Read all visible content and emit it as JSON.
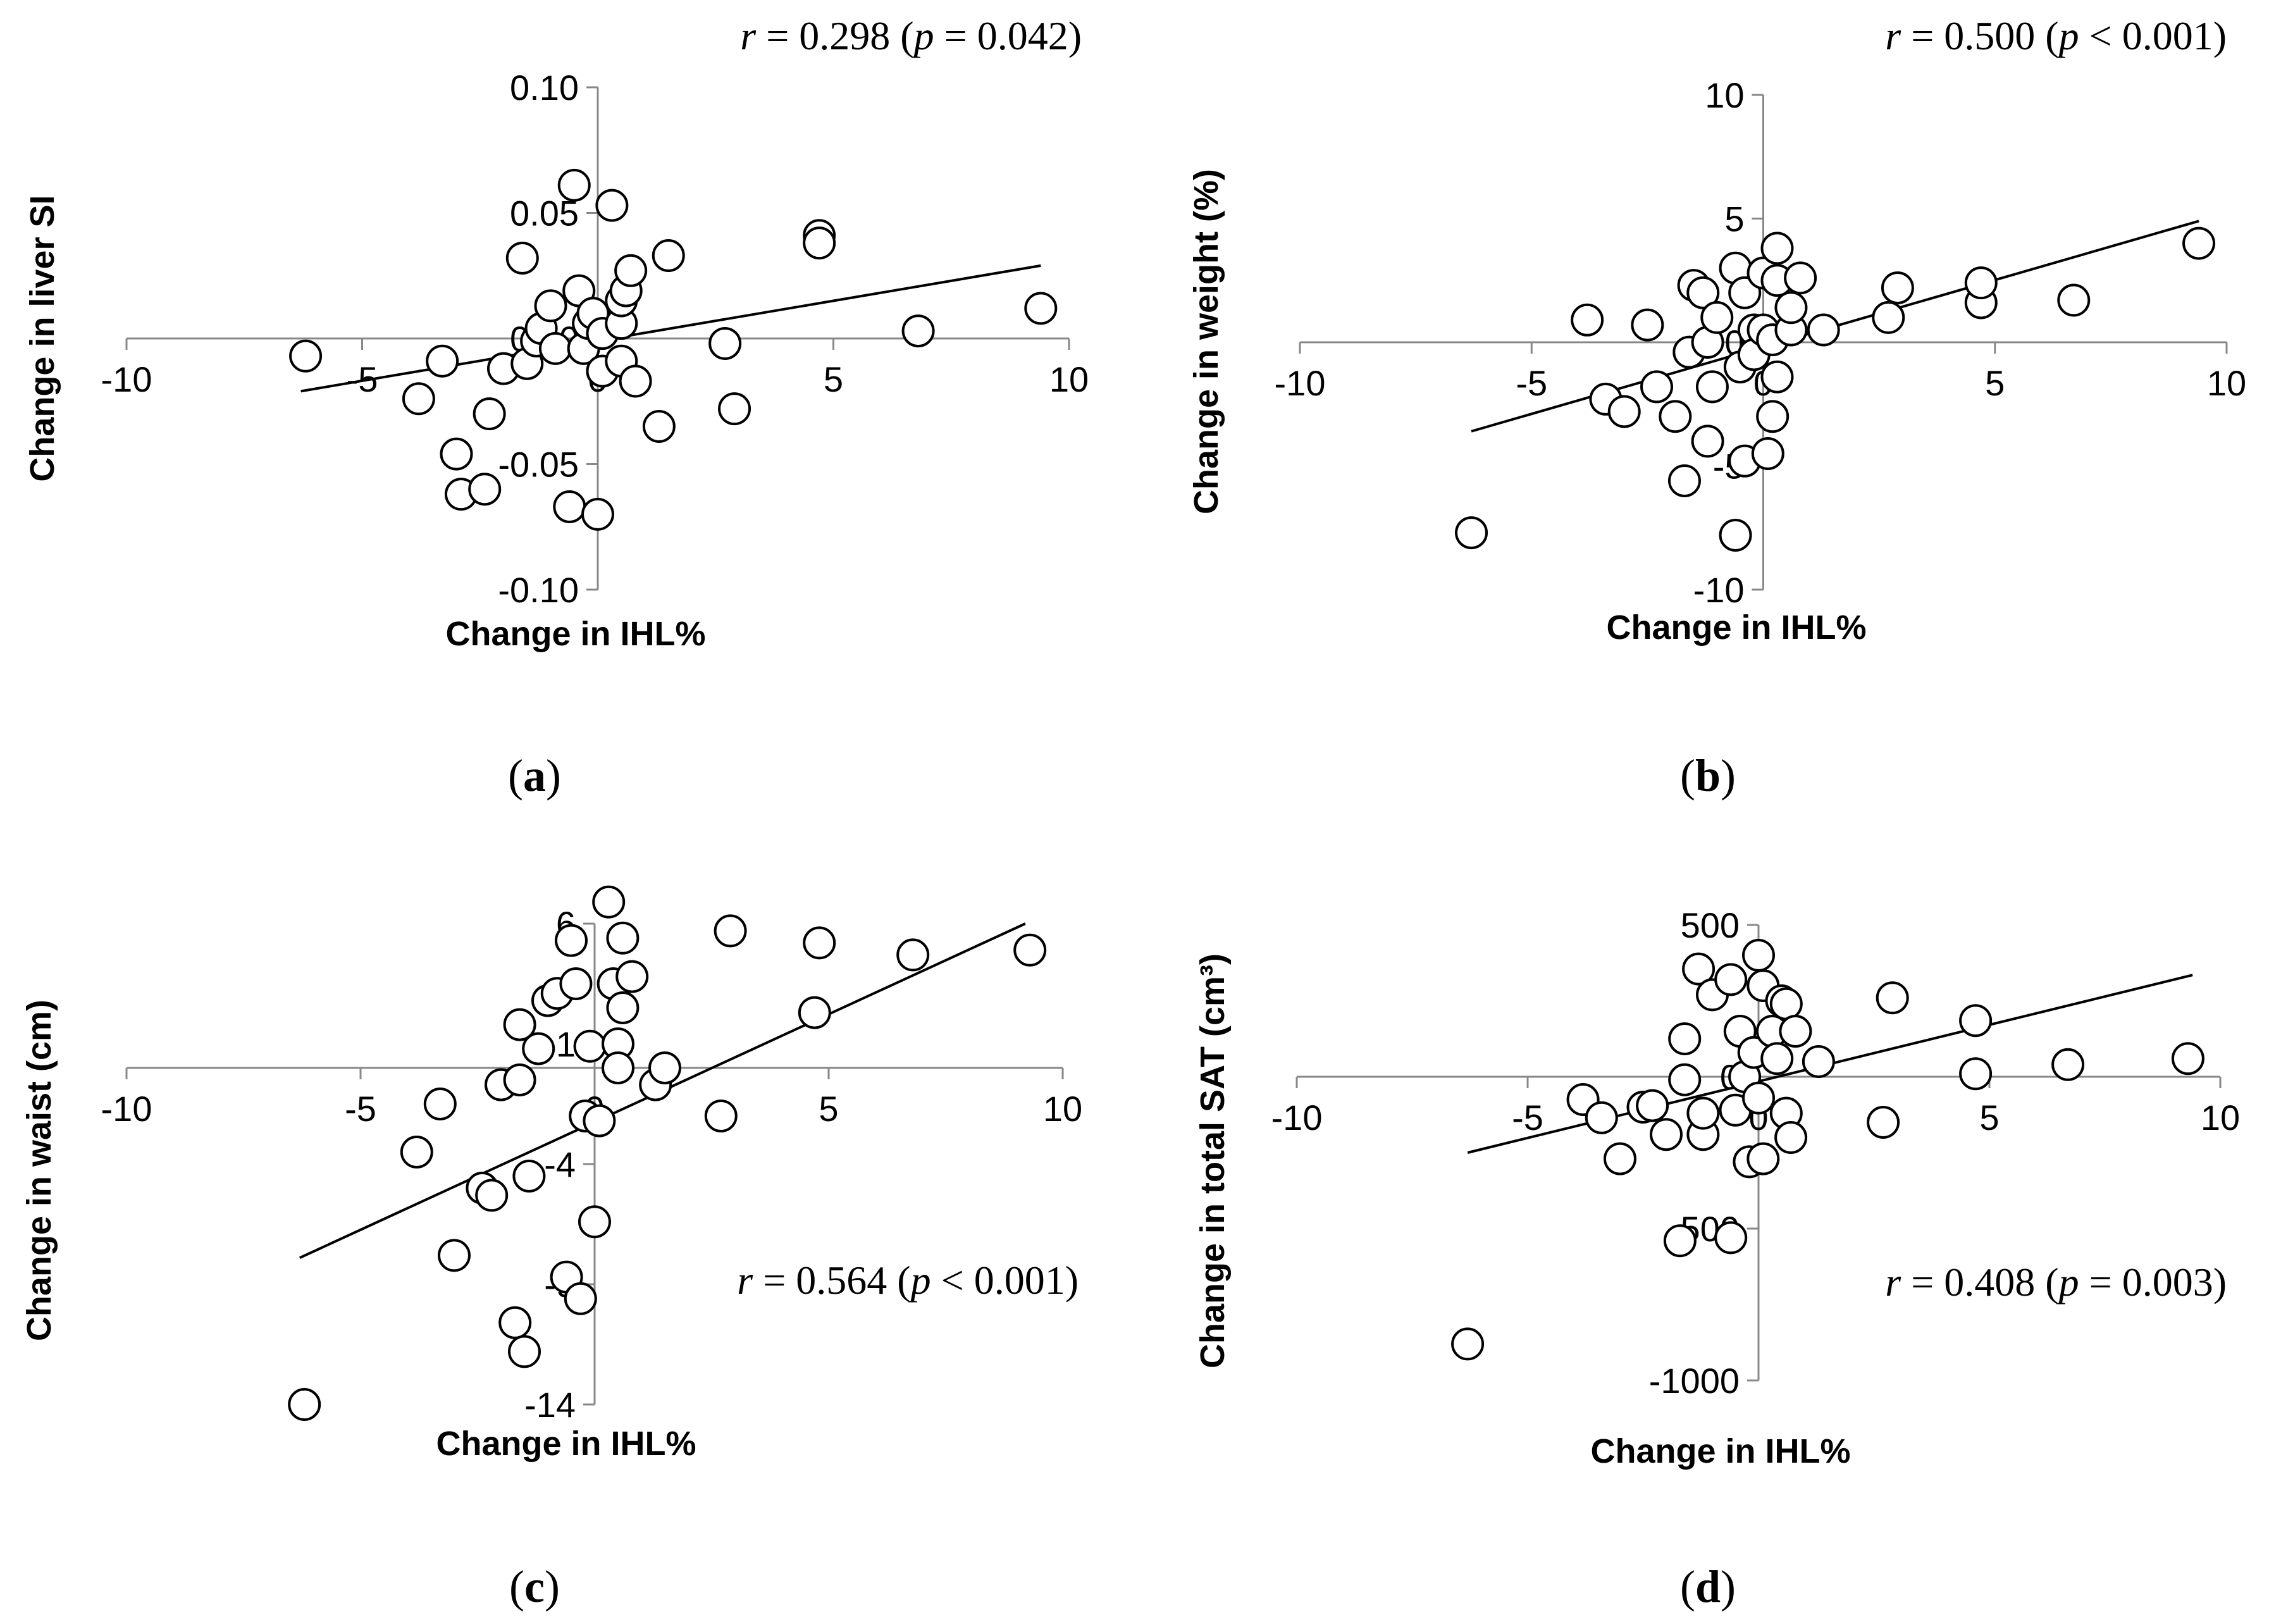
{
  "chart_data": [
    {
      "id": "a",
      "type": "scatter",
      "panel_label": "a",
      "stat": {
        "r": "0.298",
        "p_op": "=",
        "p": "0.042"
      },
      "xlabel": "Change in IHL%",
      "ylabel": "Change in liver SI",
      "xlim": [
        -10,
        10
      ],
      "ylim": [
        -0.1,
        0.1
      ],
      "xticks": [
        "-10",
        "-5",
        "0",
        "5",
        "10"
      ],
      "yticks": [
        "0.10",
        "0.05",
        "0.00",
        "-0.05",
        "-0.10"
      ],
      "trendline": [
        [
          -6.3,
          -0.021
        ],
        [
          9.4,
          0.029
        ]
      ],
      "points": [
        [
          -6.2,
          -0.007
        ],
        [
          -3.8,
          -0.024
        ],
        [
          -3.3,
          -0.009
        ],
        [
          -3.0,
          -0.046
        ],
        [
          -2.9,
          -0.062
        ],
        [
          -2.4,
          -0.06
        ],
        [
          -2.3,
          -0.03
        ],
        [
          -2.0,
          -0.012
        ],
        [
          -1.6,
          0.032
        ],
        [
          -1.5,
          -0.01
        ],
        [
          -1.3,
          -0.001
        ],
        [
          -1.2,
          0.004
        ],
        [
          -1.0,
          0.013
        ],
        [
          -0.9,
          -0.004
        ],
        [
          -0.6,
          -0.067
        ],
        [
          -0.5,
          0.061
        ],
        [
          -0.4,
          0.019
        ],
        [
          -0.3,
          -0.004
        ],
        [
          -0.2,
          0.006
        ],
        [
          -0.1,
          0.01
        ],
        [
          0.0,
          -0.07
        ],
        [
          0.1,
          -0.013
        ],
        [
          0.1,
          0.002
        ],
        [
          0.3,
          0.053
        ],
        [
          0.5,
          -0.009
        ],
        [
          0.5,
          0.006
        ],
        [
          0.5,
          0.015
        ],
        [
          0.6,
          0.019
        ],
        [
          0.7,
          0.027
        ],
        [
          0.8,
          -0.017
        ],
        [
          1.3,
          -0.035
        ],
        [
          1.5,
          0.033
        ],
        [
          2.7,
          -0.002
        ],
        [
          2.9,
          -0.028
        ],
        [
          4.7,
          0.041
        ],
        [
          4.7,
          0.038
        ],
        [
          6.8,
          0.003
        ],
        [
          9.4,
          0.012
        ]
      ]
    },
    {
      "id": "b",
      "type": "scatter",
      "panel_label": "b",
      "stat": {
        "r": "0.500",
        "p_op": "<",
        "p": "0.001"
      },
      "xlabel": "Change in IHL%",
      "ylabel": "Change in weight (%)",
      "xlim": [
        -10,
        10
      ],
      "ylim": [
        -10,
        10
      ],
      "xticks": [
        "-10",
        "-5",
        "0",
        "5",
        "10"
      ],
      "yticks": [
        "10",
        "5",
        "0",
        "-5",
        "-10"
      ],
      "trendline": [
        [
          -6.3,
          -3.6
        ],
        [
          9.4,
          4.9
        ]
      ],
      "points": [
        [
          -6.3,
          -7.7
        ],
        [
          -3.8,
          0.9
        ],
        [
          -3.4,
          -2.3
        ],
        [
          -3.0,
          -2.8
        ],
        [
          -2.5,
          0.7
        ],
        [
          -2.3,
          -1.8
        ],
        [
          -1.9,
          -3.0
        ],
        [
          -1.7,
          -5.6
        ],
        [
          -1.6,
          -0.4
        ],
        [
          -1.5,
          2.3
        ],
        [
          -1.3,
          2.0
        ],
        [
          -1.2,
          -4.0
        ],
        [
          -1.2,
          0.0
        ],
        [
          -1.1,
          -1.8
        ],
        [
          -1.0,
          1.0
        ],
        [
          -0.6,
          -7.8
        ],
        [
          -0.6,
          3.0
        ],
        [
          -0.5,
          -1.0
        ],
        [
          -0.4,
          2.0
        ],
        [
          -0.4,
          -4.8
        ],
        [
          -0.2,
          0.5
        ],
        [
          -0.2,
          -0.5
        ],
        [
          0.0,
          2.8
        ],
        [
          0.0,
          0.5
        ],
        [
          0.1,
          -4.5
        ],
        [
          0.2,
          0.1
        ],
        [
          0.2,
          -3.0
        ],
        [
          0.3,
          -1.4
        ],
        [
          0.3,
          2.5
        ],
        [
          0.3,
          3.8
        ],
        [
          0.6,
          0.5
        ],
        [
          0.6,
          1.4
        ],
        [
          0.8,
          2.6
        ],
        [
          1.3,
          0.5
        ],
        [
          2.7,
          1.0
        ],
        [
          2.9,
          2.2
        ],
        [
          4.7,
          1.6
        ],
        [
          4.7,
          2.4
        ],
        [
          6.7,
          1.7
        ],
        [
          9.4,
          4.0
        ]
      ]
    },
    {
      "id": "c",
      "type": "scatter",
      "panel_label": "c",
      "stat": {
        "r": "0.564",
        "p_op": "<",
        "p": "0.001"
      },
      "xlabel": "Change in IHL%",
      "ylabel": "Change in waist (cm)",
      "xlim": [
        -10,
        10
      ],
      "ylim": [
        -14,
        6
      ],
      "xticks": [
        "-10",
        "-5",
        "0",
        "5",
        "10"
      ],
      "yticks": [
        "6",
        "1",
        "-4",
        "-9",
        "-14"
      ],
      "trendline": [
        [
          -6.3,
          -7.9
        ],
        [
          9.2,
          6.0
        ]
      ],
      "points": [
        [
          -6.2,
          -14.0
        ],
        [
          -3.8,
          -3.5
        ],
        [
          -3.3,
          -1.5
        ],
        [
          -3.0,
          -7.8
        ],
        [
          -2.4,
          -5.0
        ],
        [
          -2.2,
          -5.3
        ],
        [
          -2.0,
          -0.7
        ],
        [
          -1.7,
          -10.6
        ],
        [
          -1.6,
          1.8
        ],
        [
          -1.6,
          -0.5
        ],
        [
          -1.5,
          -11.8
        ],
        [
          -1.4,
          -4.5
        ],
        [
          -1.2,
          0.8
        ],
        [
          -1.0,
          2.8
        ],
        [
          -0.8,
          3.1
        ],
        [
          -0.6,
          -8.7
        ],
        [
          -0.5,
          5.3
        ],
        [
          -0.4,
          3.5
        ],
        [
          -0.3,
          -9.6
        ],
        [
          -0.2,
          -2.0
        ],
        [
          -0.1,
          0.9
        ],
        [
          0.0,
          -6.4
        ],
        [
          0.1,
          -2.2
        ],
        [
          0.3,
          6.9
        ],
        [
          0.4,
          3.5
        ],
        [
          0.5,
          1.0
        ],
        [
          0.5,
          0.0
        ],
        [
          0.6,
          2.5
        ],
        [
          0.6,
          5.4
        ],
        [
          0.8,
          3.8
        ],
        [
          1.3,
          -0.7
        ],
        [
          1.5,
          0.0
        ],
        [
          2.7,
          -2.0
        ],
        [
          2.9,
          5.7
        ],
        [
          4.7,
          2.3
        ],
        [
          4.8,
          5.2
        ],
        [
          6.8,
          4.7
        ],
        [
          9.3,
          4.9
        ]
      ]
    },
    {
      "id": "d",
      "type": "scatter",
      "panel_label": "d",
      "stat": {
        "r": "0.408",
        "p_op": "=",
        "p": "0.003"
      },
      "xlabel": "Change in IHL%",
      "ylabel": "Change in total SAT (cm³)",
      "xlim": [
        -10,
        10
      ],
      "ylim": [
        -1000,
        500
      ],
      "xticks": [
        "-10",
        "-5",
        "0",
        "5",
        "10"
      ],
      "yticks": [
        "500",
        "0",
        "-500",
        "-1000"
      ],
      "trendline": [
        [
          -6.3,
          -250
        ],
        [
          9.4,
          335
        ]
      ],
      "points": [
        [
          -6.3,
          -880
        ],
        [
          -3.8,
          -75
        ],
        [
          -3.4,
          -135
        ],
        [
          -3.0,
          -270
        ],
        [
          -2.5,
          -100
        ],
        [
          -2.3,
          -95
        ],
        [
          -2.0,
          -190
        ],
        [
          -1.7,
          -540
        ],
        [
          -1.6,
          125
        ],
        [
          -1.6,
          -10
        ],
        [
          -1.3,
          355
        ],
        [
          -1.2,
          -190
        ],
        [
          -1.2,
          -120
        ],
        [
          -1.0,
          270
        ],
        [
          -0.6,
          -530
        ],
        [
          -0.6,
          320
        ],
        [
          -0.5,
          -110
        ],
        [
          -0.4,
          150
        ],
        [
          -0.3,
          0
        ],
        [
          -0.2,
          -280
        ],
        [
          -0.1,
          80
        ],
        [
          0.0,
          400
        ],
        [
          0.0,
          -70
        ],
        [
          0.1,
          -270
        ],
        [
          0.1,
          300
        ],
        [
          0.3,
          150
        ],
        [
          0.4,
          60
        ],
        [
          0.5,
          250
        ],
        [
          0.6,
          -120
        ],
        [
          0.6,
          240
        ],
        [
          0.7,
          -200
        ],
        [
          0.8,
          150
        ],
        [
          1.3,
          50
        ],
        [
          2.7,
          -150
        ],
        [
          2.9,
          260
        ],
        [
          4.7,
          10
        ],
        [
          4.7,
          185
        ],
        [
          6.7,
          40
        ],
        [
          9.3,
          60
        ]
      ]
    }
  ]
}
